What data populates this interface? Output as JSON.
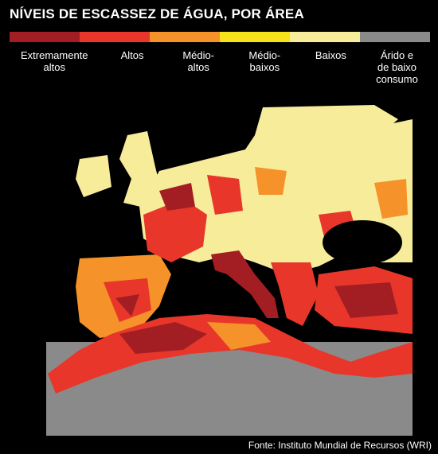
{
  "title": "NÍVEIS DE ESCASSEZ DE ÁGUA, POR ÁREA",
  "legend": [
    {
      "label": "Extremamente altos",
      "color": "#a31e22"
    },
    {
      "label": "Altos",
      "color": "#e8372a"
    },
    {
      "label": "Médio-altos",
      "color": "#f5922a"
    },
    {
      "label": "Médio-baixos",
      "color": "#f7e11a"
    },
    {
      "label": "Baixos",
      "color": "#f7ec9a"
    },
    {
      "label": "Árido e de baixo consumo",
      "color": "#8a8a8a"
    }
  ],
  "source": "Fonte: Instituto Mundial de Recursos (WRI)"
}
